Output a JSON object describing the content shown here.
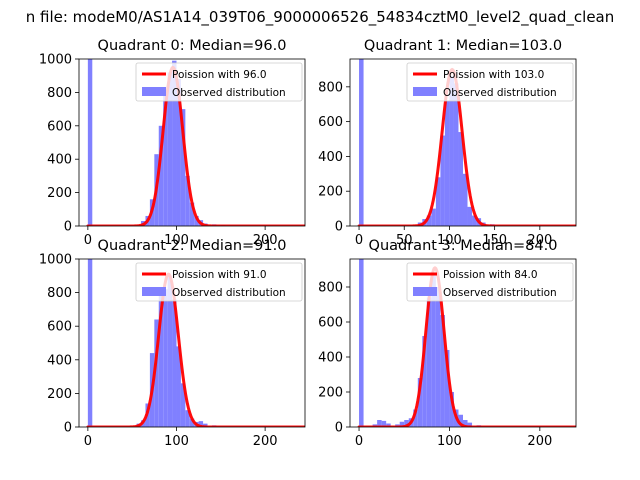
{
  "figure": {
    "suptitle": "n file: modeM0/AS1A14_039T06_9000006526_54834cztM0_level2_quad_clean"
  },
  "colors": {
    "fit_line": "#ff0000",
    "observed_bars": "#8080ff",
    "axes": "#000000"
  },
  "chart_data": [
    {
      "type": "bar",
      "title": "Quadrant 0: Median=96.0",
      "xlim": [
        -10,
        245
      ],
      "ylim": [
        0,
        1000
      ],
      "xticks": [
        0,
        100,
        200
      ],
      "yticks": [
        0,
        200,
        400,
        600,
        800,
        1000
      ],
      "legend": {
        "location": "upper-right",
        "entries": [
          "Poission with 96.0",
          "Observed distribution"
        ]
      },
      "series": [
        {
          "name": "Observed distribution",
          "kind": "histogram",
          "bin_width": 5,
          "bins": [
            {
              "x": 0,
              "y": 1000
            },
            {
              "x": 60,
              "y": 30
            },
            {
              "x": 65,
              "y": 60
            },
            {
              "x": 70,
              "y": 160
            },
            {
              "x": 75,
              "y": 430
            },
            {
              "x": 80,
              "y": 600
            },
            {
              "x": 85,
              "y": 790
            },
            {
              "x": 90,
              "y": 920
            },
            {
              "x": 95,
              "y": 990
            },
            {
              "x": 100,
              "y": 880
            },
            {
              "x": 105,
              "y": 700
            },
            {
              "x": 110,
              "y": 300
            },
            {
              "x": 115,
              "y": 140
            },
            {
              "x": 120,
              "y": 60
            },
            {
              "x": 125,
              "y": 35
            },
            {
              "x": 130,
              "y": 15
            },
            {
              "x": 140,
              "y": 10
            },
            {
              "x": 150,
              "y": 6
            }
          ]
        },
        {
          "name": "Poission with 96.0",
          "kind": "line",
          "peak_x": 96,
          "peak_y": 950,
          "width": 11,
          "x_range": [
            0,
            245
          ]
        }
      ]
    },
    {
      "type": "bar",
      "title": "Quadrant 1: Median=103.0",
      "xlim": [
        -10,
        240
      ],
      "ylim": [
        0,
        960
      ],
      "xticks": [
        0,
        50,
        100,
        150,
        200
      ],
      "yticks": [
        0,
        200,
        400,
        600,
        800
      ],
      "legend": {
        "location": "upper-right",
        "entries": [
          "Poission with 103.0",
          "Observed distribution"
        ]
      },
      "series": [
        {
          "name": "Observed distribution",
          "kind": "histogram",
          "bin_width": 5,
          "bins": [
            {
              "x": 0,
              "y": 960
            },
            {
              "x": 65,
              "y": 20
            },
            {
              "x": 70,
              "y": 40
            },
            {
              "x": 75,
              "y": 60
            },
            {
              "x": 80,
              "y": 100
            },
            {
              "x": 85,
              "y": 280
            },
            {
              "x": 90,
              "y": 520
            },
            {
              "x": 95,
              "y": 720
            },
            {
              "x": 100,
              "y": 860
            },
            {
              "x": 105,
              "y": 820
            },
            {
              "x": 110,
              "y": 540
            },
            {
              "x": 115,
              "y": 300
            },
            {
              "x": 120,
              "y": 110
            },
            {
              "x": 125,
              "y": 60
            },
            {
              "x": 130,
              "y": 45
            },
            {
              "x": 135,
              "y": 20
            },
            {
              "x": 145,
              "y": 10
            }
          ]
        },
        {
          "name": "Poission with 103.0",
          "kind": "line",
          "peak_x": 103,
          "peak_y": 900,
          "width": 11,
          "x_range": [
            0,
            240
          ]
        }
      ]
    },
    {
      "type": "bar",
      "title": "Quadrant 2: Median=91.0",
      "xlim": [
        -10,
        245
      ],
      "ylim": [
        0,
        1000
      ],
      "xticks": [
        0,
        100,
        200
      ],
      "yticks": [
        0,
        200,
        400,
        600,
        800,
        1000
      ],
      "legend": {
        "location": "upper-right",
        "entries": [
          "Poission with 91.0",
          "Observed distribution"
        ]
      },
      "series": [
        {
          "name": "Observed distribution",
          "kind": "histogram",
          "bin_width": 5,
          "bins": [
            {
              "x": 0,
              "y": 1000
            },
            {
              "x": 55,
              "y": 20
            },
            {
              "x": 60,
              "y": 40
            },
            {
              "x": 65,
              "y": 140
            },
            {
              "x": 70,
              "y": 440
            },
            {
              "x": 75,
              "y": 640
            },
            {
              "x": 80,
              "y": 780
            },
            {
              "x": 85,
              "y": 820
            },
            {
              "x": 90,
              "y": 900
            },
            {
              "x": 95,
              "y": 760
            },
            {
              "x": 100,
              "y": 480
            },
            {
              "x": 105,
              "y": 260
            },
            {
              "x": 110,
              "y": 100
            },
            {
              "x": 115,
              "y": 50
            },
            {
              "x": 120,
              "y": 30
            },
            {
              "x": 125,
              "y": 35
            },
            {
              "x": 130,
              "y": 20
            },
            {
              "x": 140,
              "y": 10
            }
          ]
        },
        {
          "name": "Poission with 91.0",
          "kind": "line",
          "peak_x": 91,
          "peak_y": 910,
          "width": 11,
          "x_range": [
            0,
            245
          ]
        }
      ]
    },
    {
      "type": "bar",
      "title": "Quadrant 3: Median=84.0",
      "xlim": [
        -10,
        240
      ],
      "ylim": [
        0,
        960
      ],
      "xticks": [
        0,
        100,
        200
      ],
      "yticks": [
        0,
        200,
        400,
        600,
        800
      ],
      "legend": {
        "location": "upper-right",
        "entries": [
          "Poission with 84.0",
          "Observed distribution"
        ]
      },
      "series": [
        {
          "name": "Observed distribution",
          "kind": "histogram",
          "bin_width": 5,
          "bins": [
            {
              "x": 0,
              "y": 960
            },
            {
              "x": 15,
              "y": 15
            },
            {
              "x": 20,
              "y": 40
            },
            {
              "x": 25,
              "y": 35
            },
            {
              "x": 30,
              "y": 20
            },
            {
              "x": 40,
              "y": 15
            },
            {
              "x": 45,
              "y": 30
            },
            {
              "x": 50,
              "y": 40
            },
            {
              "x": 55,
              "y": 50
            },
            {
              "x": 60,
              "y": 100
            },
            {
              "x": 65,
              "y": 280
            },
            {
              "x": 70,
              "y": 520
            },
            {
              "x": 75,
              "y": 740
            },
            {
              "x": 80,
              "y": 880
            },
            {
              "x": 85,
              "y": 800
            },
            {
              "x": 90,
              "y": 640
            },
            {
              "x": 95,
              "y": 440
            },
            {
              "x": 100,
              "y": 200
            },
            {
              "x": 105,
              "y": 100
            },
            {
              "x": 110,
              "y": 70
            },
            {
              "x": 115,
              "y": 40
            },
            {
              "x": 120,
              "y": 25
            },
            {
              "x": 130,
              "y": 10
            }
          ]
        },
        {
          "name": "Poission with 84.0",
          "kind": "line",
          "peak_x": 84,
          "peak_y": 910,
          "width": 10,
          "x_range": [
            0,
            240
          ]
        }
      ]
    }
  ]
}
